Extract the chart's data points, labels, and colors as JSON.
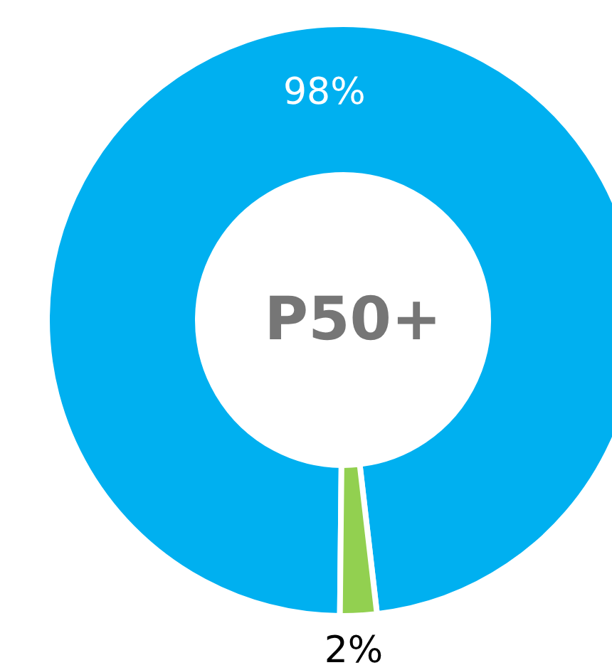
{
  "chart_data": {
    "type": "donut",
    "title": "P50+",
    "categories": [
      null,
      null
    ],
    "values": [
      98,
      2
    ],
    "colors": [
      "#00b0f0",
      "#92d050"
    ],
    "value_labels": [
      "98%",
      "2%"
    ]
  }
}
